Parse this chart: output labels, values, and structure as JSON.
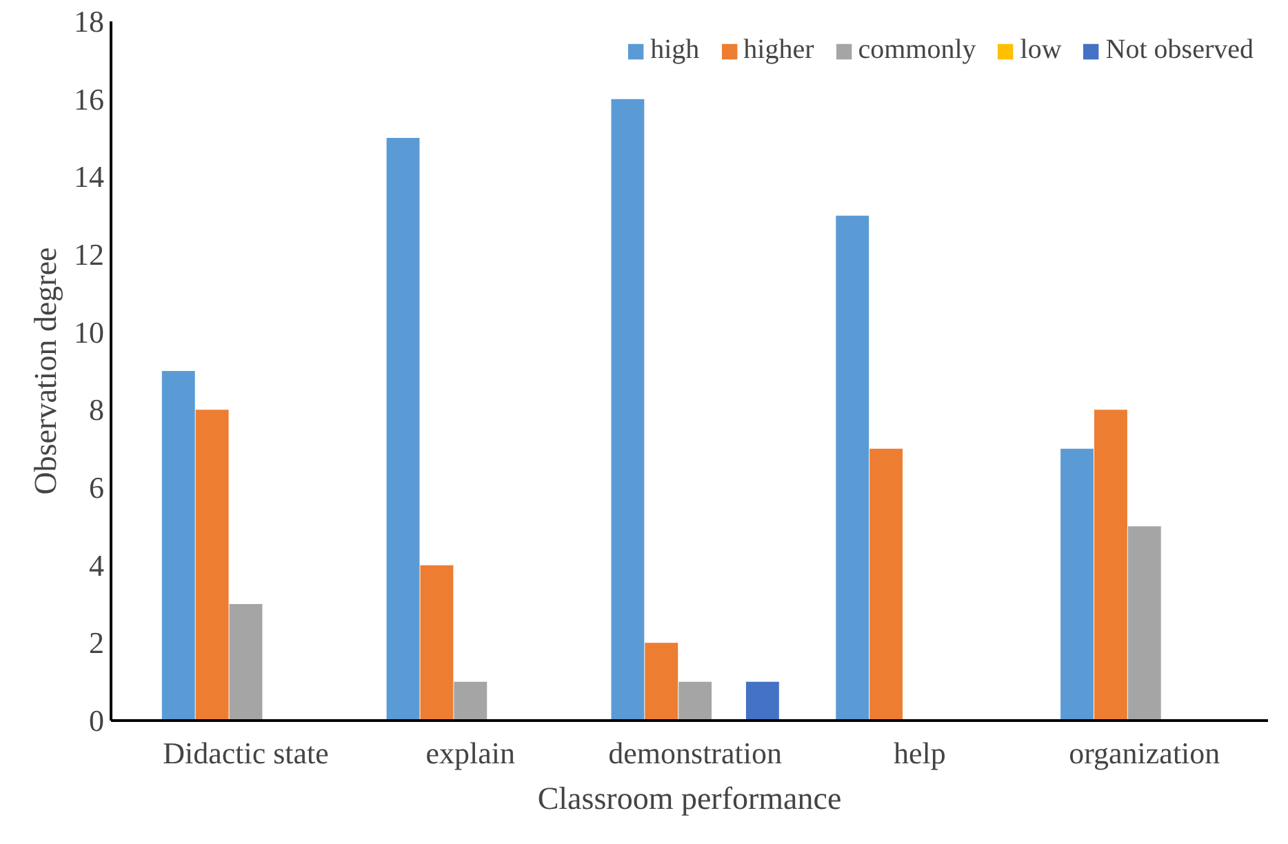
{
  "chart_data": {
    "type": "bar",
    "xlabel": "Classroom performance",
    "ylabel": "Observation degree",
    "categories": [
      "Didactic state",
      "explain",
      "demonstration",
      "help",
      "organization"
    ],
    "series": [
      {
        "name": "high",
        "color": "#5b9bd5",
        "values": [
          9,
          15,
          16,
          13,
          7
        ]
      },
      {
        "name": "higher",
        "color": "#ed7d31",
        "values": [
          8,
          4,
          2,
          7,
          8
        ]
      },
      {
        "name": "commonly",
        "color": "#a5a5a5",
        "values": [
          3,
          1,
          1,
          0,
          5
        ]
      },
      {
        "name": "low",
        "color": "#ffc000",
        "values": [
          0,
          0,
          0,
          0,
          0
        ]
      },
      {
        "name": "Not observed",
        "color": "#4472c4",
        "values": [
          0,
          0,
          1,
          0,
          0
        ]
      }
    ],
    "ylim": [
      0,
      18
    ],
    "yticks": [
      0,
      2,
      4,
      6,
      8,
      10,
      12,
      14,
      16,
      18
    ],
    "grid": false,
    "legend": "top right"
  }
}
